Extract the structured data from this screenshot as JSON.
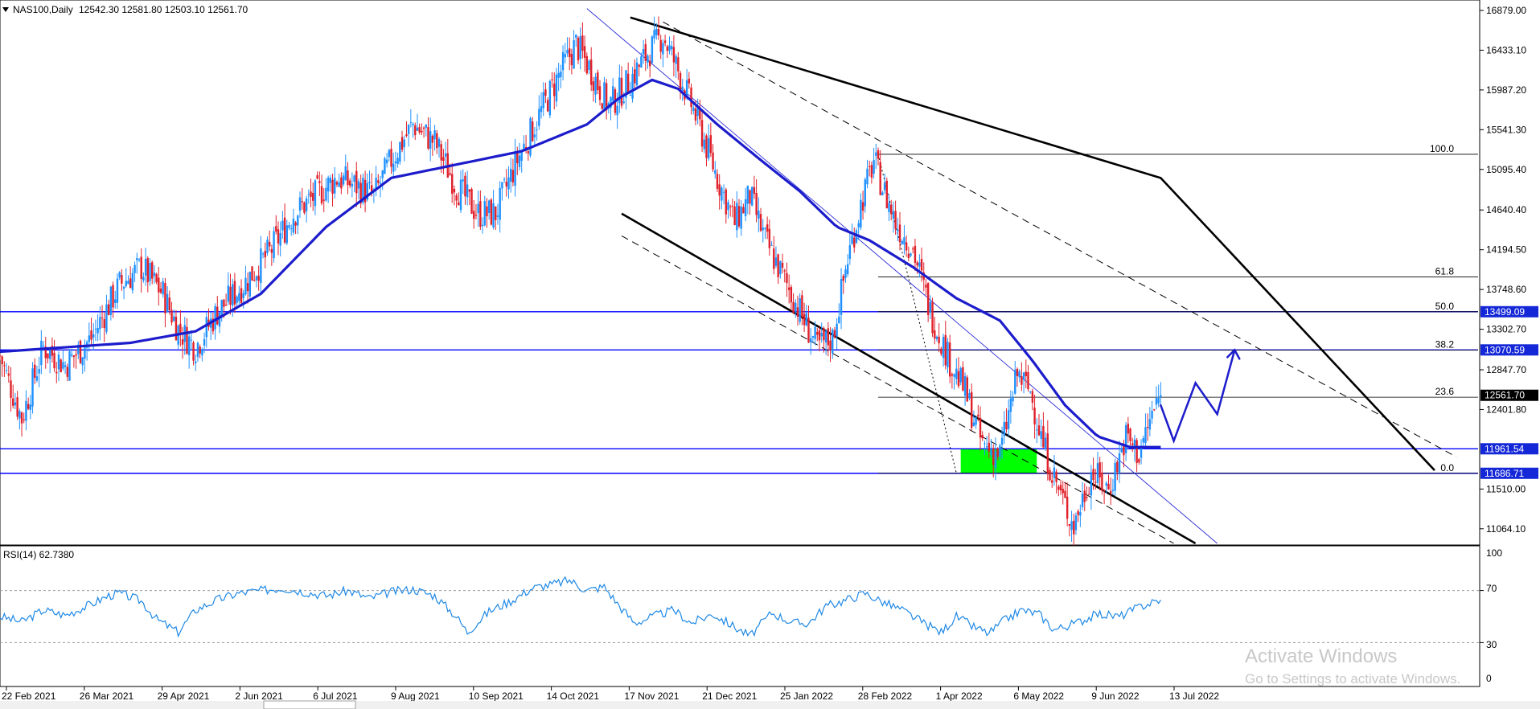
{
  "header": {
    "title": "NAS100,Daily",
    "ohlc": "12542.30 12581.80 12503.10 12561.70"
  },
  "rsi_header": "RSI(14) 62.7380",
  "watermark": {
    "line1": "Activate Windows",
    "line2": "Go to Settings to activate Windows."
  },
  "colors": {
    "bull": "#1e90ff",
    "bear": "#e0202a",
    "ma": "#1c1ccc",
    "hline": "#0000ff",
    "trend": "#000000",
    "zone": "#00ff00",
    "rsi": "#1e88e5",
    "price_tag_bg": "#000000",
    "level_tag_bg": "#1428d8"
  },
  "chart_data": [
    {
      "type": "candlestick",
      "symbol": "NAS100",
      "timeframe": "Daily",
      "last_price": 12561.7,
      "y_ticks": [
        16879.0,
        16433.1,
        15987.2,
        15541.3,
        15095.4,
        14640.4,
        14194.5,
        13748.6,
        13302.7,
        12847.7,
        12401.8,
        11510.0,
        11064.1
      ],
      "ylim": [
        10900,
        17000
      ],
      "x_ticks": [
        "22 Feb 2021",
        "26 Mar 2021",
        "29 Apr 2021",
        "2 Jun 2021",
        "6 Jul 2021",
        "9 Aug 2021",
        "10 Sep 2021",
        "14 Oct 2021",
        "17 Nov 2021",
        "21 Dec 2021",
        "25 Jan 2022",
        "28 Feb 2022",
        "1 Apr 2022",
        "6 May 2022",
        "9 Jun 2022",
        "13 Jul 2022"
      ],
      "close_path": [
        [
          0,
          13000
        ],
        [
          10,
          12300
        ],
        [
          20,
          13100
        ],
        [
          30,
          12900
        ],
        [
          42,
          13200
        ],
        [
          55,
          13800
        ],
        [
          65,
          14000
        ],
        [
          75,
          13700
        ],
        [
          82,
          13300
        ],
        [
          90,
          13100
        ],
        [
          100,
          13500
        ],
        [
          112,
          13800
        ],
        [
          125,
          14200
        ],
        [
          135,
          14600
        ],
        [
          145,
          14800
        ],
        [
          155,
          15000
        ],
        [
          165,
          14900
        ],
        [
          172,
          14800
        ],
        [
          180,
          15200
        ],
        [
          190,
          15600
        ],
        [
          200,
          15400
        ],
        [
          210,
          14900
        ],
        [
          220,
          14600
        ],
        [
          228,
          14600
        ],
        [
          238,
          15200
        ],
        [
          248,
          15700
        ],
        [
          258,
          16200
        ],
        [
          265,
          16500
        ],
        [
          272,
          16200
        ],
        [
          280,
          15800
        ],
        [
          290,
          16100
        ],
        [
          298,
          16400
        ],
        [
          305,
          16600
        ],
        [
          312,
          16200
        ],
        [
          320,
          15700
        ],
        [
          330,
          15000
        ],
        [
          338,
          14500
        ],
        [
          345,
          14800
        ],
        [
          352,
          14300
        ],
        [
          360,
          13900
        ],
        [
          368,
          13500
        ],
        [
          376,
          13100
        ],
        [
          383,
          13200
        ],
        [
          390,
          14100
        ],
        [
          396,
          14700
        ],
        [
          402,
          15200
        ],
        [
          406,
          14900
        ],
        [
          412,
          14500
        ],
        [
          420,
          14200
        ],
        [
          428,
          13500
        ],
        [
          436,
          13000
        ],
        [
          444,
          12600
        ],
        [
          452,
          12000
        ],
        [
          460,
          11900
        ],
        [
          468,
          12800
        ],
        [
          474,
          12600
        ],
        [
          480,
          12000
        ],
        [
          487,
          11500
        ],
        [
          494,
          11100
        ],
        [
          502,
          11700
        ],
        [
          510,
          11500
        ],
        [
          518,
          12100
        ],
        [
          524,
          11900
        ],
        [
          530,
          12350
        ],
        [
          534,
          12561.7
        ]
      ],
      "moving_average": [
        [
          0,
          13050
        ],
        [
          30,
          13100
        ],
        [
          60,
          13150
        ],
        [
          90,
          13280
        ],
        [
          120,
          13700
        ],
        [
          150,
          14450
        ],
        [
          180,
          15000
        ],
        [
          210,
          15150
        ],
        [
          240,
          15300
        ],
        [
          270,
          15600
        ],
        [
          285,
          15900
        ],
        [
          300,
          16100
        ],
        [
          312,
          16000
        ],
        [
          330,
          15600
        ],
        [
          350,
          15200
        ],
        [
          368,
          14850
        ],
        [
          385,
          14450
        ],
        [
          400,
          14300
        ],
        [
          420,
          14000
        ],
        [
          440,
          13650
        ],
        [
          460,
          13400
        ],
        [
          475,
          12950
        ],
        [
          490,
          12450
        ],
        [
          505,
          12100
        ],
        [
          520,
          11980
        ],
        [
          534,
          11980
        ]
      ],
      "horizontal_levels": [
        {
          "price": 13499.09,
          "label": "13499.09"
        },
        {
          "price": 13070.59,
          "label": "13070.59"
        },
        {
          "price": 11961.54,
          "label": "11961.54"
        },
        {
          "price": 11686.71,
          "label": "11686.71"
        }
      ],
      "fibonacci": [
        {
          "level": "100.0",
          "price": 15265
        },
        {
          "level": "61.8",
          "price": 13890
        },
        {
          "level": "50.0",
          "price": 13499
        },
        {
          "level": "38.2",
          "price": 13070
        },
        {
          "level": "23.6",
          "price": 12540
        },
        {
          "level": "0.0",
          "price": 11686.71
        }
      ],
      "demand_zone": {
        "x_from": 442,
        "x_to": 477,
        "price_from": 11686.71,
        "price_to": 11961.54
      },
      "trend_channel": {
        "upper_solid": [
          [
            290,
            16800
          ],
          [
            534,
            15000
          ],
          [
            660,
            11720
          ]
        ],
        "upper_dashed": [
          [
            305,
            16750
          ],
          [
            670,
            11870
          ]
        ],
        "lower_solid": [
          [
            286,
            14600
          ],
          [
            550,
            10900
          ]
        ],
        "lower_dashed": [
          [
            286,
            14350
          ],
          [
            540,
            10900
          ]
        ],
        "inner_thin": [
          [
            270,
            16900
          ],
          [
            560,
            10900
          ]
        ]
      },
      "projection_arrow": [
        [
          534,
          12450
        ],
        [
          540,
          12050
        ],
        [
          550,
          12700
        ],
        [
          560,
          12350
        ],
        [
          568,
          13070
        ]
      ]
    },
    {
      "type": "line",
      "indicator": "RSI(14)",
      "value": 62.738,
      "y_ticks": [
        100,
        70,
        30,
        0
      ],
      "levels": [
        70,
        30
      ],
      "ylim": [
        0,
        100
      ],
      "series": [
        [
          0,
          50
        ],
        [
          10,
          46
        ],
        [
          20,
          55
        ],
        [
          30,
          51
        ],
        [
          40,
          58
        ],
        [
          50,
          66
        ],
        [
          55,
          68
        ],
        [
          65,
          62
        ],
        [
          72,
          48
        ],
        [
          82,
          38
        ],
        [
          90,
          55
        ],
        [
          100,
          63
        ],
        [
          110,
          68
        ],
        [
          120,
          70
        ],
        [
          130,
          72
        ],
        [
          140,
          69
        ],
        [
          150,
          66
        ],
        [
          160,
          70
        ],
        [
          170,
          64
        ],
        [
          180,
          69
        ],
        [
          190,
          71
        ],
        [
          200,
          66
        ],
        [
          210,
          50
        ],
        [
          215,
          38
        ],
        [
          225,
          54
        ],
        [
          235,
          62
        ],
        [
          245,
          72
        ],
        [
          255,
          75
        ],
        [
          262,
          78
        ],
        [
          270,
          70
        ],
        [
          278,
          73
        ],
        [
          285,
          58
        ],
        [
          292,
          45
        ],
        [
          300,
          50
        ],
        [
          310,
          55
        ],
        [
          318,
          45
        ],
        [
          328,
          52
        ],
        [
          338,
          42
        ],
        [
          345,
          35
        ],
        [
          355,
          53
        ],
        [
          365,
          45
        ],
        [
          372,
          45
        ],
        [
          380,
          58
        ],
        [
          388,
          62
        ],
        [
          398,
          68
        ],
        [
          405,
          62
        ],
        [
          415,
          55
        ],
        [
          425,
          45
        ],
        [
          433,
          38
        ],
        [
          440,
          50
        ],
        [
          448,
          42
        ],
        [
          455,
          37
        ],
        [
          462,
          47
        ],
        [
          470,
          55
        ],
        [
          478,
          52
        ],
        [
          485,
          40
        ],
        [
          495,
          45
        ],
        [
          505,
          52
        ],
        [
          515,
          50
        ],
        [
          525,
          58
        ],
        [
          534,
          63
        ]
      ]
    }
  ],
  "rsi_labels": {
    "top": "100",
    "l70": "70",
    "l30": "30",
    "bottom": "0"
  }
}
